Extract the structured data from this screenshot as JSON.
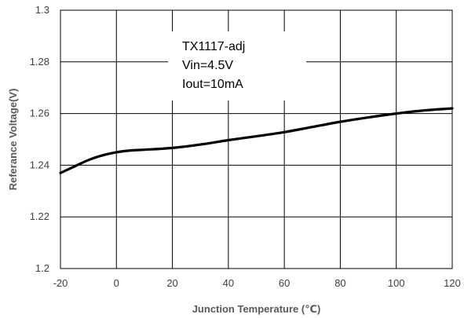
{
  "chart_data": {
    "type": "line",
    "title": "",
    "xlabel": "Junction Temperature (℃)",
    "ylabel": "Referance Voltage(V)",
    "xlim": [
      -20,
      120
    ],
    "ylim": [
      1.2,
      1.3
    ],
    "x_ticks": [
      -20,
      0,
      20,
      40,
      60,
      80,
      100,
      120
    ],
    "y_ticks": [
      1.2,
      1.22,
      1.24,
      1.26,
      1.28,
      1.3
    ],
    "x_tick_labels": [
      "-20",
      "0",
      "20",
      "40",
      "60",
      "80",
      "100",
      "120"
    ],
    "y_tick_labels": [
      "1.2",
      "1.22",
      "1.24",
      "1.26",
      "1.28",
      "1.3"
    ],
    "grid": true,
    "line_color": "#000000",
    "series": [
      {
        "x": [
          -20,
          -15,
          -10,
          -5,
          0,
          5,
          10,
          20,
          30,
          40,
          50,
          60,
          70,
          80,
          90,
          100,
          110,
          120
        ],
        "y": [
          1.237,
          1.2395,
          1.242,
          1.2438,
          1.245,
          1.2457,
          1.246,
          1.2467,
          1.248,
          1.2497,
          1.2512,
          1.2528,
          1.2548,
          1.2568,
          1.2585,
          1.26,
          1.2612,
          1.262
        ]
      }
    ],
    "annotations": [
      "TX1117-adj",
      "Vin=4.5V",
      "Iout=10mA"
    ]
  }
}
